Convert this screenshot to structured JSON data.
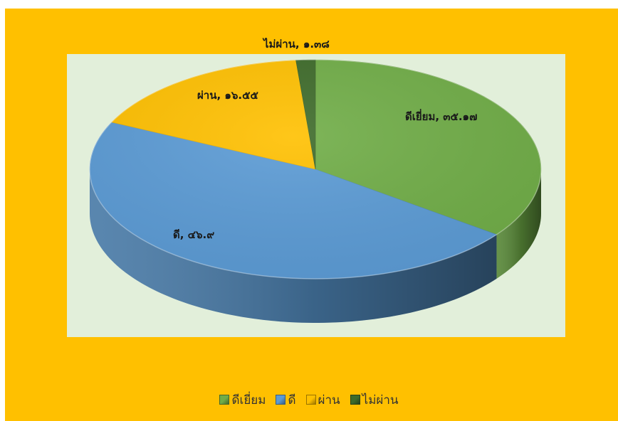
{
  "chart_data": {
    "type": "pie",
    "style": "3d",
    "title": "",
    "categories": [
      "ดีเยี่ยม",
      "ดี",
      "ผ่าน",
      "ไม่ผ่าน"
    ],
    "values": [
      35.17,
      46.9,
      16.55,
      1.38
    ],
    "data_labels": [
      "ดีเยี่ยม, ๓๕.๑๗",
      "ดี, ๔๖.๙",
      "ผ่าน, ๑๖.๕๕",
      "ไม่ผ่าน, ๑.๓๘"
    ],
    "colors": [
      "#70ad47",
      "#5b9bd5",
      "#ffc000",
      "#3e6b2a"
    ],
    "legend_position": "bottom",
    "background_color": "#ffc000",
    "plot_background_color": "#e2efda"
  }
}
